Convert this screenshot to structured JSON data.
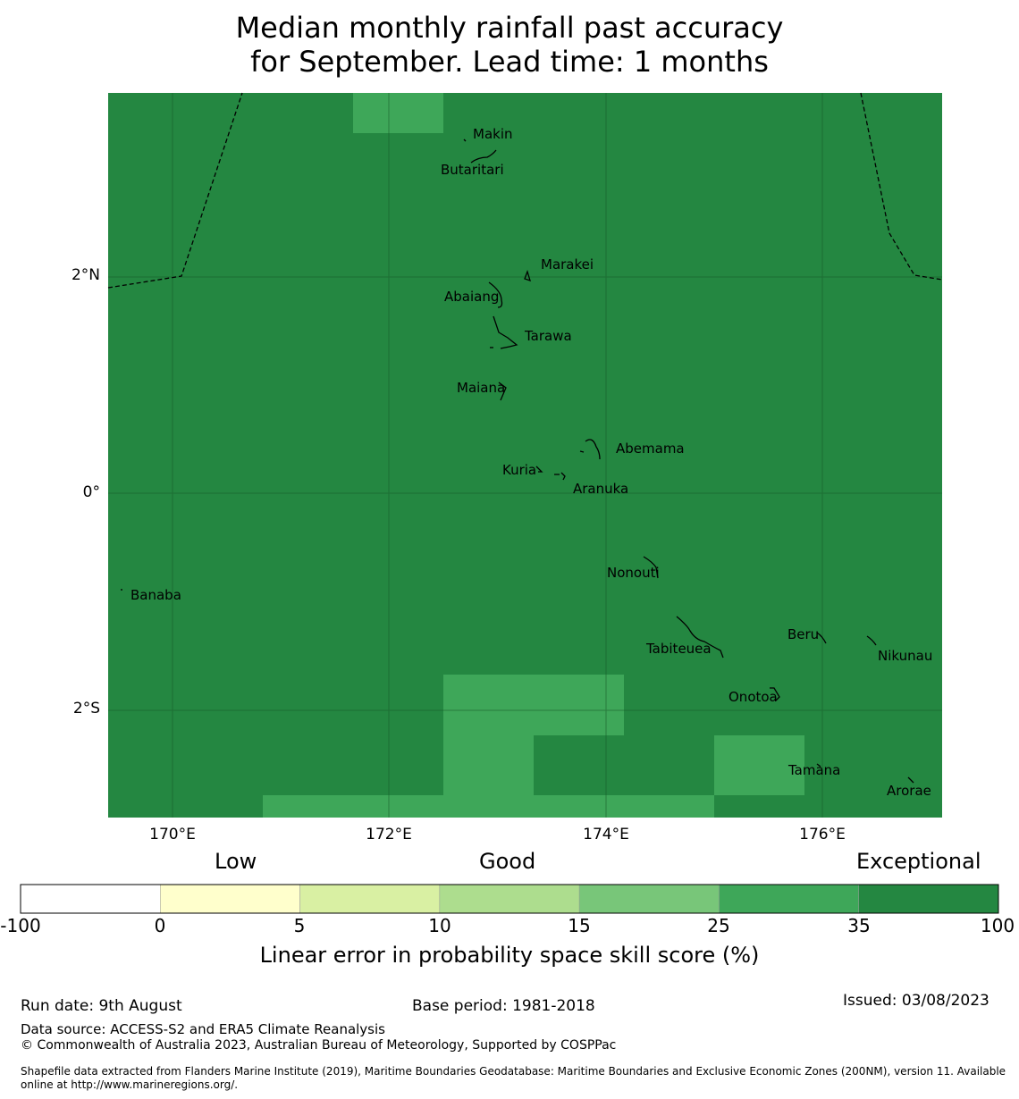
{
  "title": {
    "line1": "Median monthly rainfall past accuracy",
    "line2": "for September. Lead time: 1 months"
  },
  "map": {
    "lat_labels": [
      "2°N",
      "0°",
      "2°S"
    ],
    "lon_labels": [
      "170°E",
      "172°E",
      "174°E",
      "176°E"
    ],
    "places": [
      {
        "name": "Makin"
      },
      {
        "name": "Butaritari"
      },
      {
        "name": "Marakei"
      },
      {
        "name": "Abaiang"
      },
      {
        "name": "Tarawa"
      },
      {
        "name": "Maiana"
      },
      {
        "name": "Abemama"
      },
      {
        "name": "Kuria"
      },
      {
        "name": "Aranuka"
      },
      {
        "name": "Banaba"
      },
      {
        "name": "Nonouti"
      },
      {
        "name": "Beru"
      },
      {
        "name": "Tabiteuea"
      },
      {
        "name": "Nikunau"
      },
      {
        "name": "Onotoa"
      },
      {
        "name": "Tamana"
      },
      {
        "name": "Arorae"
      }
    ],
    "colors": {
      "exceptional": "#248741",
      "band_25_35": "#3ea759"
    }
  },
  "legend": {
    "categories": [
      "Low",
      "Good",
      "Exceptional"
    ],
    "ticks": [
      "-100",
      "0",
      "5",
      "10",
      "15",
      "25",
      "35",
      "100"
    ],
    "colors": [
      "#ffffff",
      "#ffffcc",
      "#d9f0a3",
      "#addd8e",
      "#78c679",
      "#3ea759",
      "#248741"
    ],
    "label": "Linear error in probability space skill score (%)"
  },
  "footer": {
    "run_date": "Run date: 9th August",
    "base_period": "Base period: 1981-2018",
    "issued": "Issued: 03/08/2023",
    "data_source": "Data source: ACCESS-S2 and ERA5 Climate Reanalysis",
    "copyright": "© Commonwealth of Australia 2023, Australian Bureau of Meteorology, Supported by COSPPac",
    "shapefile_line1": "Shapefile data extracted from Flanders Marine Institute (2019), Maritime Boundaries Geodatabase: Maritime Boundaries and Exclusive Economic Zones (200NM), version 11. Available",
    "shapefile_line2": "online at http://www.marineregions.org/."
  }
}
